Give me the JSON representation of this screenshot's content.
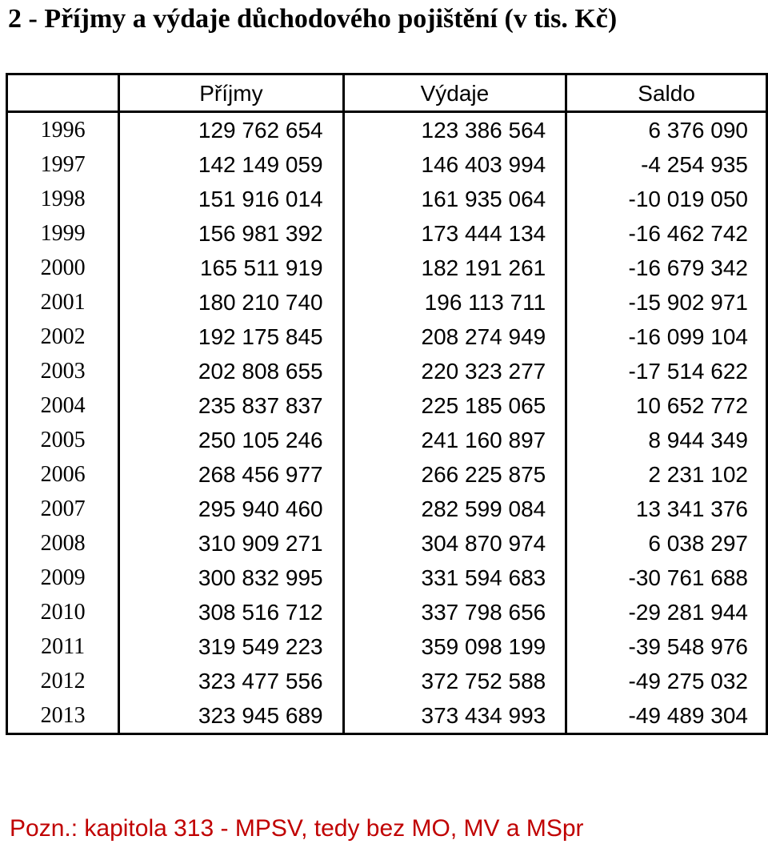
{
  "title": "2 - Příjmy a výdaje důchodového pojištění (v tis. Kč)",
  "table": {
    "headers": [
      "",
      "Příjmy",
      "Výdaje",
      "Saldo"
    ],
    "rows": [
      [
        "1996",
        "129 762 654",
        "123 386 564",
        "6 376 090"
      ],
      [
        "1997",
        "142 149 059",
        "146 403 994",
        "-4 254 935"
      ],
      [
        "1998",
        "151 916 014",
        "161 935 064",
        "-10 019 050"
      ],
      [
        "1999",
        "156 981 392",
        "173 444 134",
        "-16 462 742"
      ],
      [
        "2000",
        "165 511 919",
        "182 191 261",
        "-16 679 342"
      ],
      [
        "2001",
        "180 210 740",
        "196 113 711",
        "-15 902 971"
      ],
      [
        "2002",
        "192 175 845",
        "208 274 949",
        "-16 099 104"
      ],
      [
        "2003",
        "202 808 655",
        "220 323 277",
        "-17 514 622"
      ],
      [
        "2004",
        "235 837 837",
        "225 185 065",
        "10 652 772"
      ],
      [
        "2005",
        "250 105 246",
        "241 160 897",
        "8 944 349"
      ],
      [
        "2006",
        "268 456 977",
        "266 225 875",
        "2 231 102"
      ],
      [
        "2007",
        "295 940 460",
        "282 599 084",
        "13 341 376"
      ],
      [
        "2008",
        "310 909 271",
        "304 870 974",
        "6 038 297"
      ],
      [
        "2009",
        "300 832 995",
        "331 594 683",
        "-30 761 688"
      ],
      [
        "2010",
        "308 516 712",
        "337 798 656",
        "-29 281 944"
      ],
      [
        "2011",
        "319 549 223",
        "359 098 199",
        "-39 548 976"
      ],
      [
        "2012",
        "323 477 556",
        "372 752 588",
        "-49 275 032"
      ],
      [
        "2013",
        "323 945 689",
        "373 434 993",
        "-49 489 304"
      ]
    ]
  },
  "note": "Pozn.: kapitola 313 - MPSV, tedy bez MO, MV a MSpr",
  "colors": {
    "text": "#000000",
    "note": "#c00000",
    "background": "#ffffff"
  }
}
